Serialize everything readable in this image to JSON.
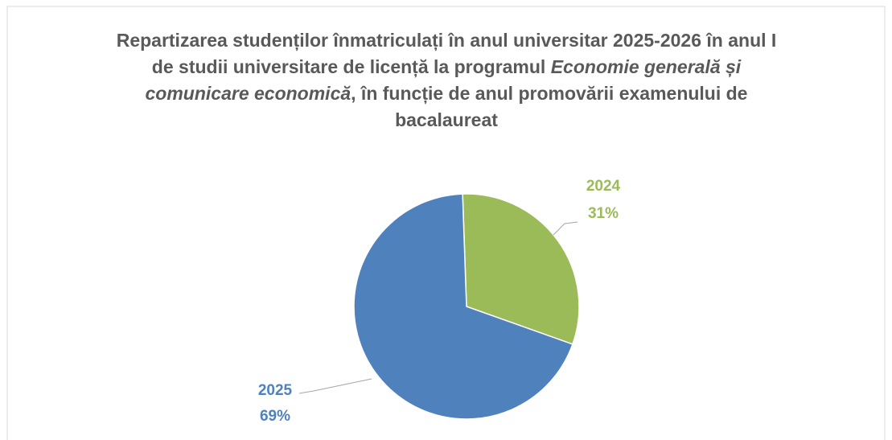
{
  "chart_data": {
    "type": "pie",
    "title": [
      "Repartizarea studenților înmatriculați în anul universitar 2025-2026 în anul I de studii universitare de licență la programul ",
      "Economie generală și comunicare economică",
      ", în funcție de anul promovării examenului de bacalaureat"
    ],
    "categories": [
      "2025",
      "2024"
    ],
    "values": [
      69,
      31
    ],
    "value_labels": [
      "69%",
      "31%"
    ],
    "colors": [
      "#4f81bd",
      "#9bbb59"
    ]
  }
}
